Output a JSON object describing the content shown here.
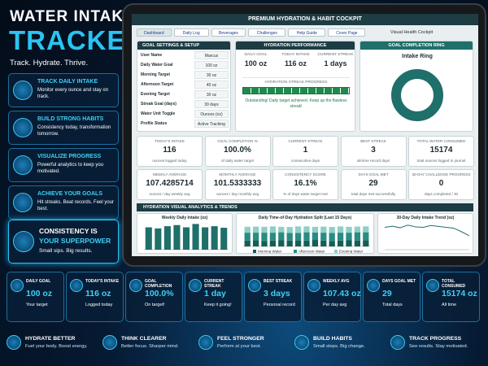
{
  "header": {
    "title1": "WATER INTAKE",
    "title2": "TRACKER",
    "tagline": "Track. Hydrate. Thrive."
  },
  "features": [
    {
      "title": "TRACK DAILY INTAKE",
      "text": "Monitor every ounce and stay on track."
    },
    {
      "title": "BUILD STRONG HABITS",
      "text": "Consistency today, transformation tomorrow."
    },
    {
      "title": "VISUALIZE PROGRESS",
      "text": "Powerful analytics to keep you motivated."
    },
    {
      "title": "ACHIEVE YOUR GOALS",
      "text": "Hit streaks. Beat records. Feel your best."
    }
  ],
  "highlight": {
    "title1": "CONSISTENCY IS",
    "title2": "YOUR SUPERPOWER",
    "text": "Small sips. Big results."
  },
  "dashboard": {
    "title": "PREMIUM HYDRATION & HABIT COCKPIT",
    "tabs": [
      "Dashboard",
      "Daily Log",
      "Beverages",
      "Challenges",
      "Help Guide",
      "Cover Page"
    ],
    "side_label": "Visual Health Cockpit",
    "settings": {
      "title": "GOAL SETTINGS & SETUP",
      "rows": [
        [
          "User Name",
          "Marcus"
        ],
        [
          "Daily Water Goal",
          "100 oz"
        ],
        [
          "Morning Target",
          "30 oz"
        ],
        [
          "Afternoon Target",
          "40 oz"
        ],
        [
          "Evening Target",
          "30 oz"
        ],
        [
          "Streak Goal (days)",
          "30 days"
        ],
        [
          "Water Unit Toggle",
          "Ounces (oz)"
        ],
        [
          "Profile Status",
          "Active Tracking"
        ]
      ]
    },
    "performance": {
      "title": "HYDRATION PERFORMANCE",
      "columns": [
        {
          "label": "DAILY GOAL",
          "value": "100 oz"
        },
        {
          "label": "TODAY INTAKE",
          "value": "116 oz"
        },
        {
          "label": "CURRENT STREAK",
          "value": "1 days"
        }
      ],
      "progress_title": "HYDRATION STREAK PROGRESS",
      "message": "Outstanding! Daily target achieved. Keep up the flawless streak!"
    },
    "ring": {
      "title": "GOAL COMPLETION RING",
      "label": "Intake Ring"
    },
    "kpis": [
      {
        "label": "TODAY'S INTAKE",
        "value": "116",
        "sub": "ounces logged today"
      },
      {
        "label": "GOAL COMPLETION %",
        "value": "100.0%",
        "sub": "of daily water target"
      },
      {
        "label": "CURRENT STREAK",
        "value": "1",
        "sub": "consecutive days"
      },
      {
        "label": "BEST STREAK",
        "value": "3",
        "sub": "all-time record days"
      },
      {
        "label": "TOTAL WATER CONSUMED",
        "value": "15174",
        "sub": "total ounces logged in journal"
      },
      {
        "label": "WEEKLY AVERAGE",
        "value": "107.4285714",
        "sub": "ounces / day weekly avg"
      },
      {
        "label": "MONTHLY AVERAGE",
        "value": "101.5333333",
        "sub": "ounces / day monthly avg"
      },
      {
        "label": "CONSISTENCY SCORE",
        "value": "16.1%",
        "sub": "% of days water target met"
      },
      {
        "label": "DAYS GOAL MET",
        "value": "29",
        "sub": "total days met successfully"
      },
      {
        "label": "30-DAY CHALLENGE PROGRESS",
        "value": "0",
        "sub": "days completed / 30"
      }
    ],
    "analytics_title": "HYDRATION VISUAL ANALYTICS & TRENDS"
  },
  "chart_data": [
    {
      "type": "bar",
      "title": "Weekly Daily Intake (oz)",
      "values": [
        100,
        95,
        105,
        110,
        100,
        115,
        100,
        105,
        98
      ],
      "color": "#1f6f6a",
      "ylim": [
        0,
        120
      ]
    },
    {
      "type": "stacked_bar",
      "title": "Daily Time-of-Day Hydration Split (Last 15 Days)",
      "ylim": [
        0,
        120
      ],
      "series": [
        {
          "name": "Morning Water",
          "color": "#155e58",
          "values": [
            30,
            32,
            28,
            30,
            31,
            30,
            29,
            30,
            33,
            30,
            28,
            30,
            31,
            30,
            32
          ]
        },
        {
          "name": "Afternoon Water",
          "color": "#2a8c82",
          "values": [
            40,
            38,
            42,
            40,
            41,
            39,
            40,
            42,
            38,
            40,
            41,
            40,
            39,
            42,
            40
          ]
        },
        {
          "name": "Evening Water",
          "color": "#8fcfc7",
          "values": [
            30,
            31,
            30,
            32,
            28,
            30,
            33,
            30,
            29,
            31,
            30,
            32,
            30,
            29,
            30
          ]
        }
      ]
    },
    {
      "type": "line",
      "title": "30-Day Daily Intake Trend (oz)",
      "values": [
        100,
        105,
        98,
        110,
        102,
        100,
        108,
        104,
        100,
        96,
        80,
        62
      ],
      "color": "#1f6f6a",
      "ylim": [
        0,
        120
      ]
    }
  ],
  "stats": [
    {
      "label": "DAILY GOAL",
      "value": "100 oz",
      "sub": "Your target"
    },
    {
      "label": "TODAY'S INTAKE",
      "value": "116 oz",
      "sub": "Logged today"
    },
    {
      "label": "GOAL COMPLETION",
      "value": "100.0%",
      "sub": "On target!"
    },
    {
      "label": "CURRENT STREAK",
      "value": "1 day",
      "sub": "Keep it going!"
    },
    {
      "label": "BEST STREAK",
      "value": "3 days",
      "sub": "Personal record"
    },
    {
      "label": "WEEKLY AVG",
      "value": "107.43 oz",
      "sub": "Per day avg"
    },
    {
      "label": "DAYS GOAL MET",
      "value": "29",
      "sub": "Total days"
    },
    {
      "label": "TOTAL CONSUMED",
      "value": "15174 oz",
      "sub": "All time"
    }
  ],
  "footer": [
    {
      "title": "HYDRATE BETTER",
      "text": "Fuel your body. Boost energy."
    },
    {
      "title": "THINK CLEARER",
      "text": "Better focus. Sharper mind."
    },
    {
      "title": "FEEL STRONGER",
      "text": "Perform at your best."
    },
    {
      "title": "BUILD HABITS",
      "text": "Small steps. Big change."
    },
    {
      "title": "TRACK PROGRESS",
      "text": "See results. Stay motivated."
    }
  ]
}
